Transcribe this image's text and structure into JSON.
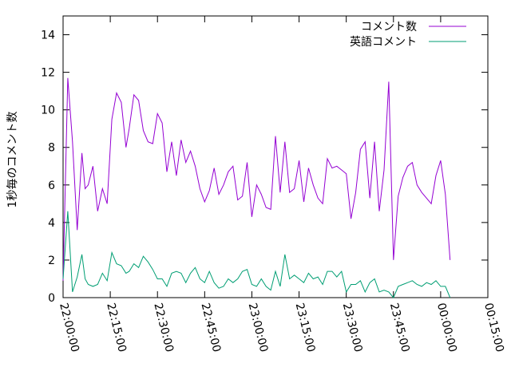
{
  "chart_data": {
    "type": "line",
    "title": "",
    "xlabel": "",
    "ylabel": "1秒毎のコメント数",
    "x_ticks": [
      "22:00:00",
      "22:15:00",
      "22:30:00",
      "22:45:00",
      "23:00:00",
      "23:15:00",
      "23:30:00",
      "23:45:00",
      "00:00:00",
      "00:15:00"
    ],
    "xlim": [
      "22:00:00",
      "00:15:00"
    ],
    "ylim": [
      0,
      15
    ],
    "y_ticks": [
      0,
      2,
      4,
      6,
      8,
      10,
      12,
      14
    ],
    "grid": false,
    "legend_position": "top-right",
    "x_times": [
      "22:00:00",
      "22:01:30",
      "22:03:00",
      "22:04:30",
      "22:06:00",
      "22:07:00",
      "22:08:00",
      "22:09:30",
      "22:11:00",
      "22:12:30",
      "22:14:00",
      "22:15:30",
      "22:17:00",
      "22:18:30",
      "22:20:00",
      "22:21:00",
      "22:22:30",
      "22:24:00",
      "22:25:30",
      "22:27:00",
      "22:28:30",
      "22:30:00",
      "22:31:30",
      "22:33:00",
      "22:34:30",
      "22:36:00",
      "22:37:30",
      "22:39:00",
      "22:40:30",
      "22:42:00",
      "22:43:30",
      "22:45:00",
      "22:46:30",
      "22:48:00",
      "22:49:30",
      "22:51:00",
      "22:52:30",
      "22:54:00",
      "22:55:30",
      "22:57:00",
      "22:58:30",
      "23:00:00",
      "23:01:30",
      "23:03:00",
      "23:04:30",
      "23:06:00",
      "23:07:30",
      "23:09:00",
      "23:10:30",
      "23:12:00",
      "23:13:30",
      "23:15:00",
      "23:16:30",
      "23:18:00",
      "23:19:30",
      "23:21:00",
      "23:22:30",
      "23:24:00",
      "23:25:30",
      "23:27:00",
      "23:28:30",
      "23:30:00",
      "23:31:30",
      "23:33:00",
      "23:34:30",
      "23:36:00",
      "23:37:30",
      "23:39:00",
      "23:40:30",
      "23:42:00",
      "23:43:30",
      "23:45:00",
      "23:46:30",
      "23:48:00",
      "23:49:30",
      "23:51:00",
      "23:52:30",
      "23:54:00",
      "23:55:30",
      "23:57:00",
      "23:58:30",
      "00:00:00",
      "00:01:30",
      "00:03:00"
    ],
    "series": [
      {
        "name": "コメント数",
        "color": "#9400d3",
        "values": [
          0.9,
          11.7,
          8.3,
          3.6,
          7.7,
          5.8,
          6.0,
          7.0,
          4.6,
          5.8,
          5.0,
          9.5,
          10.9,
          10.4,
          8.0,
          9.0,
          10.8,
          10.5,
          8.9,
          8.3,
          8.2,
          9.8,
          9.3,
          6.7,
          8.3,
          6.5,
          8.4,
          7.2,
          7.8,
          7.0,
          5.8,
          5.1,
          5.7,
          6.9,
          5.5,
          6.0,
          6.7,
          7.0,
          5.2,
          5.4,
          7.2,
          4.3,
          6.0,
          5.5,
          4.8,
          4.7,
          8.6,
          5.6,
          8.3,
          5.6,
          5.8,
          7.3,
          5.1,
          6.9,
          6.0,
          5.3,
          5.0,
          7.4,
          6.9,
          7.0,
          6.8,
          6.6,
          4.2,
          5.6,
          7.9,
          8.3,
          5.3,
          8.3,
          4.6,
          6.8,
          11.5,
          2.0,
          5.4,
          6.4,
          7.0,
          7.2,
          6.0,
          5.6,
          5.3,
          5.0,
          6.5,
          7.3,
          5.5,
          2.0
        ]
      },
      {
        "name": "英語コメント",
        "color": "#009e73",
        "values": [
          1.0,
          4.6,
          0.3,
          1.1,
          2.3,
          1.0,
          0.7,
          0.6,
          0.7,
          1.3,
          0.9,
          2.4,
          1.8,
          1.7,
          1.3,
          1.4,
          1.8,
          1.6,
          2.2,
          1.9,
          1.5,
          1.0,
          1.0,
          0.6,
          1.3,
          1.4,
          1.3,
          0.8,
          1.3,
          1.6,
          1.0,
          0.8,
          1.4,
          0.8,
          0.5,
          0.6,
          1.0,
          0.8,
          1.0,
          1.4,
          1.5,
          0.7,
          0.6,
          1.0,
          0.6,
          0.4,
          1.4,
          0.6,
          2.3,
          1.0,
          1.2,
          1.0,
          0.8,
          1.3,
          1.0,
          1.1,
          0.7,
          1.4,
          1.4,
          1.1,
          1.4,
          0.3,
          0.7,
          0.7,
          0.9,
          0.3,
          0.8,
          1.0,
          0.3,
          0.4,
          0.3,
          0.0,
          0.6,
          0.7,
          0.8,
          0.9,
          0.7,
          0.6,
          0.8,
          0.7,
          0.9,
          0.6,
          0.6,
          0.0
        ]
      }
    ]
  }
}
